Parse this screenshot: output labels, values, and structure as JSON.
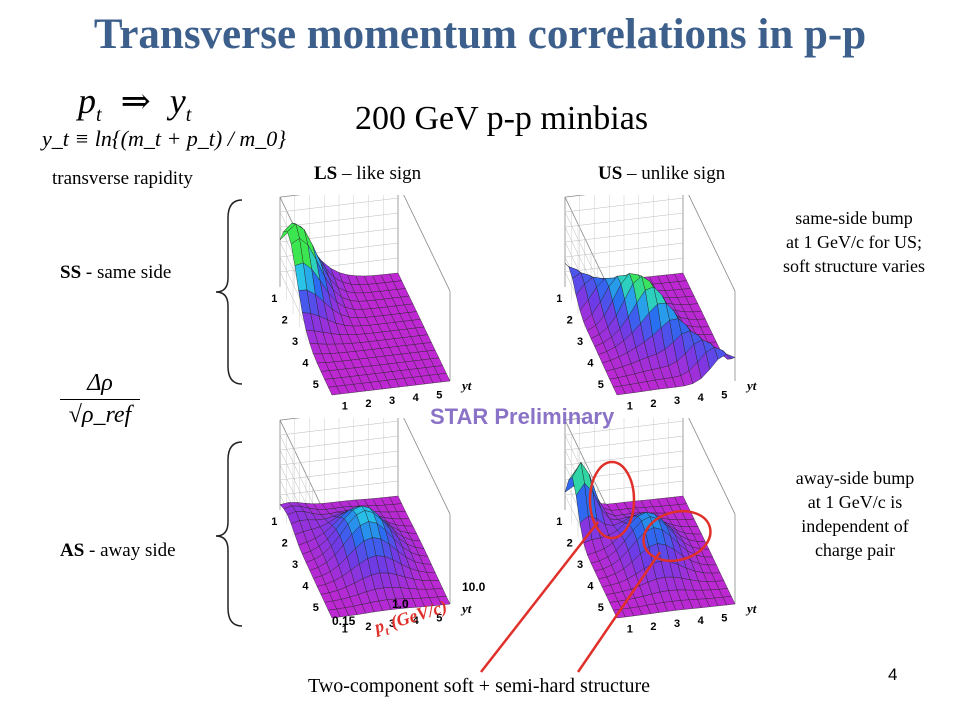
{
  "title": "Transverse momentum correlations in p-p",
  "subtitle": "200 GeV p-p minbias",
  "formula": {
    "line1_lhs": "p",
    "line1_lhs_sub": "t",
    "line1_arrow": "⇒",
    "line1_rhs": "y",
    "line1_rhs_sub": "t",
    "line2": "y_t ≡ ln{(m_t + p_t) / m_0}",
    "caption": "transverse rapidity"
  },
  "ratio_formula": {
    "numerator": "Δρ",
    "denominator": "√ρ_ref"
  },
  "columns": {
    "ls_bold": "LS",
    "ls_rest": " – like sign",
    "us_bold": "US",
    "us_rest": " – unlike sign"
  },
  "rows": {
    "ss_bold": "SS",
    "ss_rest": " - same side",
    "as_bold": "AS",
    "as_rest": " - away side"
  },
  "notes": {
    "same_side": [
      "same-side bump",
      "at 1 GeV/c for US;",
      "soft structure varies"
    ],
    "away_side": [
      "away-side bump",
      "at 1 GeV/c is",
      "independent of",
      "charge pair"
    ]
  },
  "star_label": "STAR Preliminary",
  "pt_axis": {
    "label": "p",
    "label_sub": "t",
    "label_unit": " (GeV/c)",
    "ticks": [
      "0.15",
      "1.0",
      "10.0"
    ]
  },
  "plot_axes": {
    "yt_ticks": [
      "1",
      "2",
      "3",
      "4",
      "5"
    ],
    "yt_label": "y",
    "yt_sub": "t"
  },
  "bottom_caption": "Two-component soft + semi-hard structure",
  "page_number": "4",
  "colors": {
    "title": "#3d5f8c",
    "annotation_red": "#e0302a",
    "star": "#8a73c6",
    "surface_base": "#b030d0",
    "surface_peak": "#30e060"
  }
}
